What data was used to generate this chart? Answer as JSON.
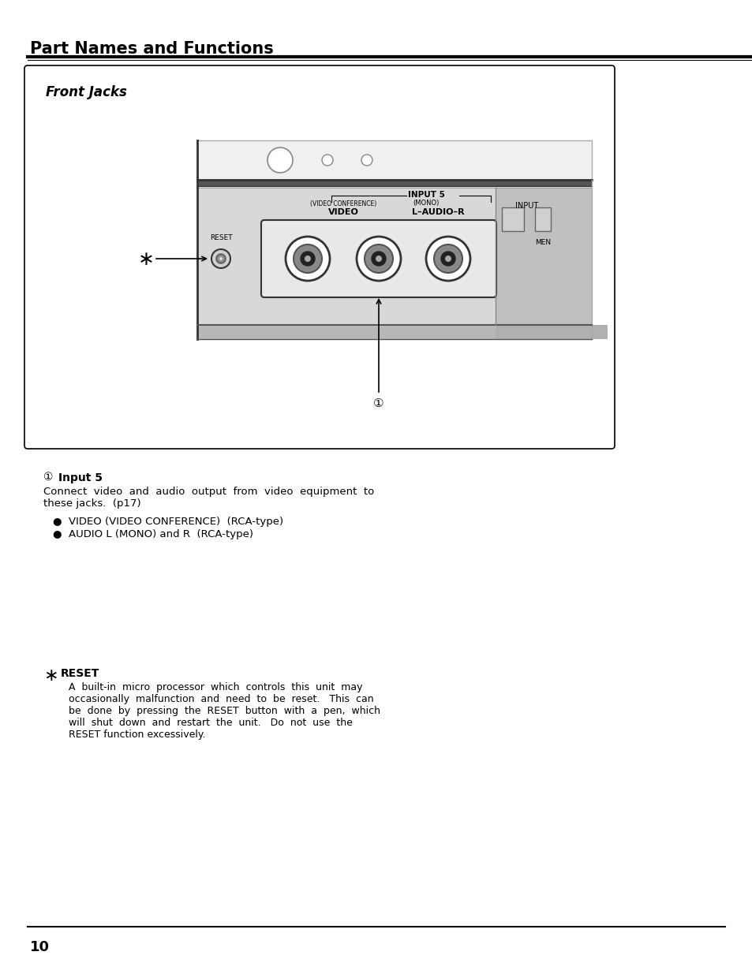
{
  "page_title": "Part Names and Functions",
  "section_title": "Front Jacks",
  "page_number": "10",
  "bg_color": "#ffffff",
  "input5_label": "Input 5",
  "input5_desc1": "Connect  video  and  audio  output  from  video  equipment  to",
  "input5_desc2": "these jacks.  (p17)",
  "bullet1": "●  VIDEO (VIDEO CONFERENCE)  (RCA-type)",
  "bullet2": "●  AUDIO L (MONO) and R  (RCA-type)",
  "reset_star": "∗",
  "reset_label": "RESET",
  "reset_desc1": "A  built-in  micro  processor  which  controls  this  unit  may",
  "reset_desc2": "occasionally  malfunction  and  need  to  be  reset.   This  can",
  "reset_desc3": "be  done  by  pressing  the  RESET  button  with  a  pen,  which",
  "reset_desc4": "will  shut  down  and  restart  the  unit.   Do  not  use  the",
  "reset_desc5": "RESET function excessively."
}
